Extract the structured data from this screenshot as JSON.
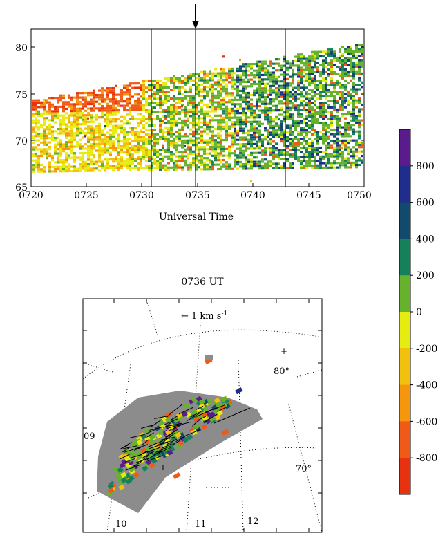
{
  "rti_panel": {
    "y_ticks": [
      "65",
      "70",
      "75",
      "80"
    ],
    "x_ticks": [
      "0720",
      "0725",
      "0730",
      "0735",
      "0740",
      "0745",
      "0750"
    ],
    "xlabel": "Universal Time"
  },
  "map_panel": {
    "title": "0736 UT",
    "scale_label": "← 1 km s",
    "scale_exp": "-1",
    "lat_labels": [
      "80°",
      "70°"
    ],
    "mlt_labels": [
      "09",
      "10",
      "11",
      "12"
    ]
  },
  "colorbar": {
    "tick_labels": [
      "800",
      "600",
      "400",
      "200",
      "0",
      "-200",
      "-400",
      "-600",
      "-800"
    ],
    "colors": [
      "#5a1b8c",
      "#1f2d8c",
      "#124a6e",
      "#15805a",
      "#66b22d",
      "#e6ec10",
      "#f2c10d",
      "#f6960c",
      "#ef5a18",
      "#e8320f"
    ]
  },
  "chart_data": [
    {
      "type": "heatmap",
      "title": "",
      "xlabel": "Universal Time",
      "ylabel": "",
      "x_ticks": [
        "0720",
        "0725",
        "0730",
        "0735",
        "0740",
        "0745",
        "0750"
      ],
      "y_ticks": [
        65,
        70,
        75,
        80
      ],
      "ylim": [
        65,
        82
      ],
      "vertical_markers": [
        "0730.8",
        "0735",
        "0743"
      ],
      "arrow_at": "0735",
      "grid": false
    },
    {
      "type": "heatmap",
      "title": "0736 UT",
      "lat_labels": [
        "80°",
        "70°"
      ],
      "mlt_labels": [
        "09",
        "10",
        "11",
        "12"
      ]
    },
    {
      "type": "heatmap",
      "colorbar_ticks": [
        800,
        600,
        400,
        200,
        0,
        -200,
        -400,
        -600,
        -800
      ],
      "range": [
        -1000,
        1000
      ]
    }
  ]
}
